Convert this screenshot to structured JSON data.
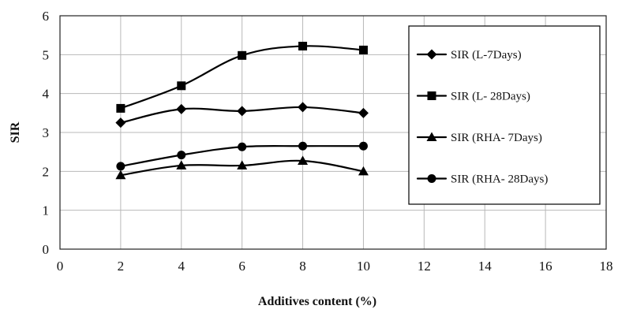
{
  "chart_data": {
    "type": "line",
    "title": "",
    "xlabel": "Additives content (%)",
    "ylabel": "SIR",
    "xlim": [
      0,
      18
    ],
    "ylim": [
      0,
      6
    ],
    "xticks": [
      "0",
      "2",
      "4",
      "6",
      "8",
      "10",
      "12",
      "14",
      "16",
      "18"
    ],
    "yticks": [
      "0",
      "1",
      "2",
      "3",
      "4",
      "5",
      "6"
    ],
    "grid": true,
    "legend_position": "right",
    "x": [
      2,
      4,
      6,
      8,
      10
    ],
    "series": [
      {
        "name": "SIR (L-7Days)",
        "marker": "diamond",
        "values": [
          3.25,
          3.6,
          3.55,
          3.65,
          3.5
        ]
      },
      {
        "name": "SIR (L- 28Days)",
        "marker": "square",
        "values": [
          3.62,
          4.2,
          4.98,
          5.22,
          5.12
        ]
      },
      {
        "name": "SIR (RHA- 7Days)",
        "marker": "triangle",
        "values": [
          1.9,
          2.15,
          2.15,
          2.27,
          2.0
        ]
      },
      {
        "name": "SIR (RHA- 28Days)",
        "marker": "circle",
        "values": [
          2.13,
          2.42,
          2.63,
          2.65,
          2.65
        ]
      }
    ]
  }
}
